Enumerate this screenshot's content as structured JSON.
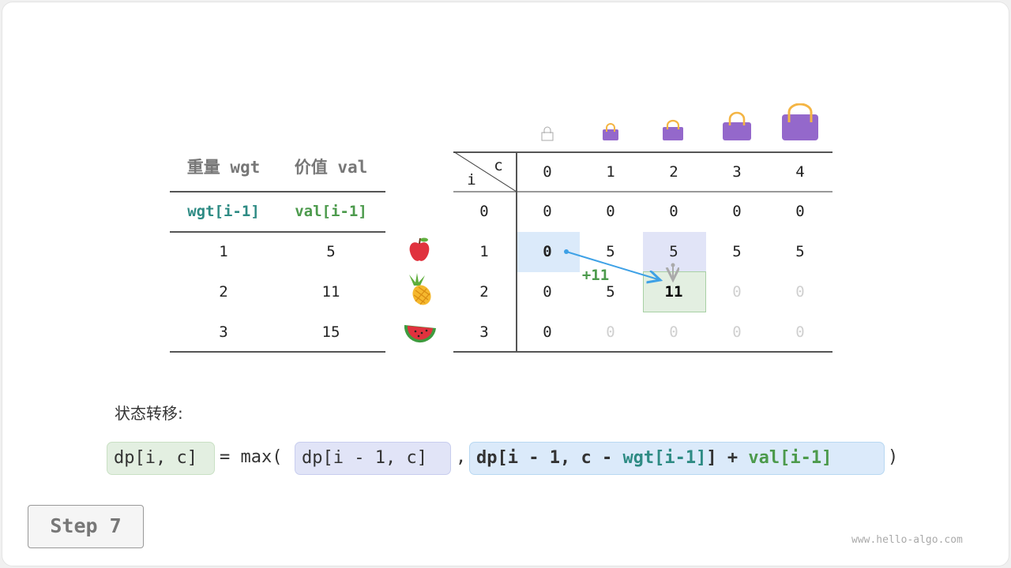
{
  "items_table": {
    "headers": [
      "重量 wgt",
      "价值 val"
    ],
    "subheaders": [
      "wgt[i-1]",
      "val[i-1]"
    ],
    "rows": [
      [
        "1",
        "5"
      ],
      [
        "2",
        "11"
      ],
      [
        "3",
        "15"
      ]
    ],
    "item_icons": [
      "apple-icon",
      "pineapple-icon",
      "watermelon-icon"
    ]
  },
  "dp_table": {
    "corner_row_label": "i",
    "corner_col_label": "c",
    "col_headers": [
      "0",
      "1",
      "2",
      "3",
      "4"
    ],
    "row_headers": [
      "0",
      "1",
      "2",
      "3"
    ],
    "rows": [
      [
        "0",
        "0",
        "0",
        "0",
        "0"
      ],
      [
        "0",
        "5",
        "5",
        "5",
        "5"
      ],
      [
        "0",
        "5",
        "11",
        "0",
        "0"
      ],
      [
        "0",
        "0",
        "0",
        "0",
        "0"
      ]
    ],
    "capacity_icons": [
      "bag-empty-icon",
      "bag-1-icon",
      "bag-2-icon",
      "bag-3-icon",
      "bag-4-icon"
    ],
    "current_cell": {
      "i": 2,
      "c": 2,
      "value": "11"
    },
    "arrow_label": "+11"
  },
  "formula": {
    "label": "状态转移:",
    "lhs": "dp[i, c]",
    "eq": "= max(",
    "opt1": "dp[i - 1, c]",
    "comma": ",",
    "opt2_a": "dp[i - 1, c - ",
    "opt2_wgt": "wgt[i-1]",
    "opt2_b": "] + ",
    "opt2_val": "val[i-1]",
    "close": ")"
  },
  "step_label": "Step 7",
  "watermark": "www.hello-algo.com",
  "colors": {
    "teal": "#2e8b84",
    "green": "#4c9a4c",
    "blue_cell": "#dbeafa",
    "purple_cell": "#e1e4f7",
    "green_cell": "#e3efe1",
    "bag": "#9468cb"
  }
}
